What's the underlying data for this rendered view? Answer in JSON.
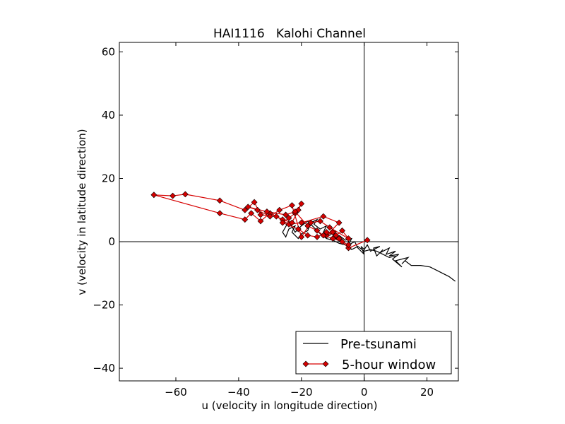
{
  "chart_data": {
    "type": "line",
    "title": "HAI1116   Kalohi Channel",
    "xlabel": "u (velocity in longitude direction)",
    "ylabel": "v (velocity in latitude direction)",
    "xlim": [
      -78,
      30
    ],
    "ylim": [
      -44,
      63
    ],
    "xticks": [
      -60,
      -40,
      -20,
      0,
      20
    ],
    "xtick_labels": [
      "−60",
      "−40",
      "−20",
      "0",
      "20"
    ],
    "yticks": [
      -40,
      -20,
      0,
      20,
      40,
      60
    ],
    "ytick_labels": [
      "−40",
      "−20",
      "0",
      "20",
      "40",
      "60"
    ],
    "reference_lines": {
      "x": 0,
      "y": 0
    },
    "grid": false,
    "legend_position": "lower-right",
    "series": [
      {
        "name": "Pre-tsunami",
        "color": "#000000",
        "marker": "none",
        "points": [
          [
            29,
            -12.5
          ],
          [
            27,
            -11
          ],
          [
            25,
            -10
          ],
          [
            23,
            -9
          ],
          [
            21,
            -8
          ],
          [
            18,
            -7.5
          ],
          [
            15,
            -7.5
          ],
          [
            13,
            -6
          ],
          [
            12,
            -7
          ],
          [
            14,
            -5
          ],
          [
            10,
            -6
          ],
          [
            12,
            -8
          ],
          [
            9,
            -5.5
          ],
          [
            11,
            -4
          ],
          [
            8,
            -4.5
          ],
          [
            10,
            -3
          ],
          [
            7,
            -4
          ],
          [
            8,
            -2
          ],
          [
            5,
            -3.5
          ],
          [
            6,
            -2.5
          ],
          [
            4,
            -4.5
          ],
          [
            3,
            -2
          ],
          [
            5,
            -1.5
          ],
          [
            2,
            -3
          ],
          [
            1,
            -1
          ],
          [
            0,
            -2.5
          ],
          [
            -1,
            -1.5
          ],
          [
            0,
            -4
          ],
          [
            -2,
            -2
          ],
          [
            -3,
            0
          ],
          [
            -5,
            -1
          ],
          [
            -4,
            1
          ],
          [
            -6,
            0.5
          ],
          [
            -8,
            2
          ],
          [
            -7,
            0
          ],
          [
            -10,
            1.5
          ],
          [
            -9,
            3.5
          ],
          [
            -11,
            2
          ],
          [
            -13,
            3
          ],
          [
            -12,
            5
          ],
          [
            -14,
            4
          ],
          [
            -16,
            5.5
          ],
          [
            -15,
            7
          ],
          [
            -17,
            6
          ],
          [
            -18,
            3.5
          ],
          [
            -20,
            2.5
          ],
          [
            -21,
            1
          ],
          [
            -23,
            3
          ],
          [
            -22,
            5
          ],
          [
            -24,
            4
          ],
          [
            -25,
            1.5
          ],
          [
            -26,
            3
          ],
          [
            -24,
            6.5
          ],
          [
            -22,
            3
          ],
          [
            -20,
            5
          ],
          [
            -18,
            6.5
          ],
          [
            -16,
            4.5
          ],
          [
            -14,
            2.5
          ],
          [
            -12,
            1
          ],
          [
            -10,
            0.5
          ],
          [
            -8,
            -0.5
          ],
          [
            -6,
            -1
          ],
          [
            -4,
            -2.5
          ],
          [
            -2,
            -1.5
          ],
          [
            0,
            -3
          ],
          [
            2,
            -2.5
          ],
          [
            4,
            -3
          ],
          [
            6,
            -4
          ],
          [
            8,
            -5
          ],
          [
            10,
            -4.5
          ]
        ]
      },
      {
        "name": "5-hour window",
        "color": "#d60000",
        "marker": "diamond",
        "points": [
          [
            1,
            0.5
          ],
          [
            -5,
            -2
          ],
          [
            -8,
            1
          ],
          [
            -10,
            3
          ],
          [
            -12,
            2
          ],
          [
            -8,
            6
          ],
          [
            -13,
            8
          ],
          [
            -20,
            6
          ],
          [
            -24,
            5.5
          ],
          [
            -28,
            8
          ],
          [
            -33,
            8.5
          ],
          [
            -35,
            12.5
          ],
          [
            -38,
            10
          ],
          [
            -46,
            13
          ],
          [
            -57,
            15
          ],
          [
            -61,
            14.5
          ],
          [
            -67,
            14.8
          ],
          [
            -46,
            9
          ],
          [
            -38,
            7
          ],
          [
            -36,
            9
          ],
          [
            -33,
            6.5
          ],
          [
            -30,
            9
          ],
          [
            -26,
            7
          ],
          [
            -23,
            6
          ],
          [
            -21,
            10
          ],
          [
            -20,
            12
          ],
          [
            -22,
            9
          ],
          [
            -24,
            7.5
          ],
          [
            -26,
            6
          ],
          [
            -21,
            4
          ],
          [
            -18,
            2
          ],
          [
            -15,
            1.5
          ],
          [
            -12,
            3
          ],
          [
            -9,
            2
          ],
          [
            -7,
            3.5
          ],
          [
            -5,
            1
          ],
          [
            -11,
            4.5
          ],
          [
            -14,
            6.5
          ],
          [
            -17,
            6
          ],
          [
            -20,
            1.5
          ],
          [
            -23,
            11.5
          ],
          [
            -27,
            10
          ],
          [
            -30,
            8
          ],
          [
            -34,
            10
          ],
          [
            -37,
            11
          ],
          [
            -31,
            9.5
          ],
          [
            -25,
            8.5
          ],
          [
            -22,
            9.5
          ],
          [
            -18,
            5
          ],
          [
            -15,
            3.5
          ],
          [
            -13,
            2
          ],
          [
            -10,
            1
          ],
          [
            -7,
            0
          ],
          [
            -5,
            -1
          ]
        ]
      }
    ]
  }
}
